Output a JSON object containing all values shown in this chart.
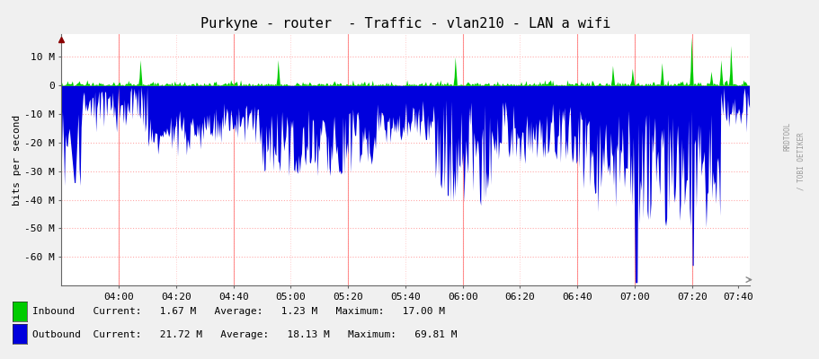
{
  "title": "Purkyne - router  - Traffic - vlan210 - LAN a wifi",
  "ylabel": "bits per second",
  "bg_color": "#f0f0f0",
  "plot_bg_color": "#ffffff",
  "grid_h_color": "#ffaaaa",
  "grid_v_color": "#ffcccc",
  "vline_color": "#ff6666",
  "inbound_color": "#00cc00",
  "outbound_color": "#0000dd",
  "yticks": [
    10000000,
    0,
    -10000000,
    -20000000,
    -30000000,
    -40000000,
    -50000000,
    -60000000
  ],
  "ytick_labels": [
    "10 M",
    "0",
    "-10 M",
    "-20 M",
    "-30 M",
    "-40 M",
    "-50 M",
    "-60 M"
  ],
  "ylim": [
    -70000000,
    18000000
  ],
  "xlim": [
    0,
    120
  ],
  "xtick_positions": [
    10,
    20,
    30,
    40,
    50,
    60,
    70,
    80,
    90,
    100,
    110,
    118
  ],
  "xtick_labels": [
    "04:00",
    "04:20",
    "04:40",
    "05:00",
    "05:20",
    "05:40",
    "06:00",
    "06:20",
    "06:40",
    "07:00",
    "07:20",
    "07:40"
  ],
  "vline_positions": [
    10,
    30,
    50,
    70,
    90,
    100,
    110
  ],
  "legend_current_in": "1.67 M",
  "legend_avg_in": "1.23 M",
  "legend_max_in": "17.00 M",
  "legend_current_out": "21.72 M",
  "legend_avg_out": "18.13 M",
  "legend_max_out": "69.81 M",
  "watermark1": "RRDTOOL",
  "watermark2": "/ TOBI OETIKER",
  "title_fontsize": 11,
  "axis_fontsize": 8,
  "legend_fontsize": 8,
  "n_points": 700
}
